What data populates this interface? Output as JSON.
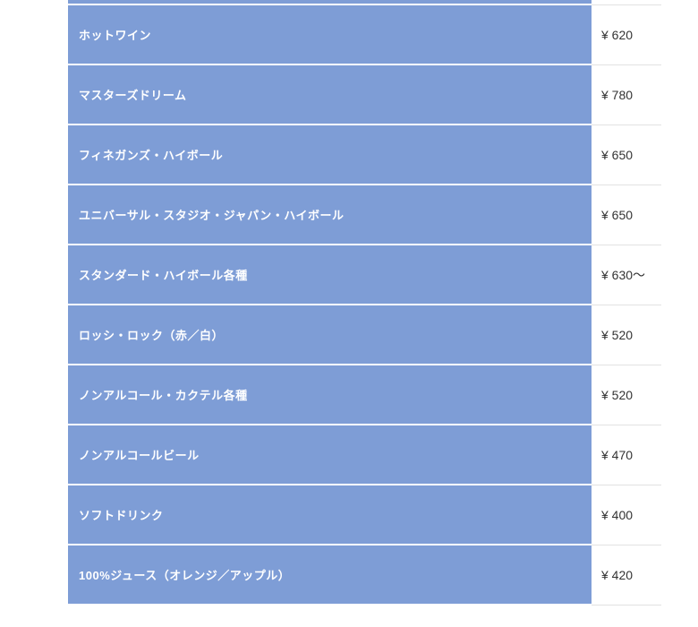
{
  "menu": {
    "rows": [
      {
        "item": "ホットワイン",
        "price": "¥ 620"
      },
      {
        "item": "マスターズドリーム",
        "price": "¥ 780"
      },
      {
        "item": "フィネガンズ・ハイボール",
        "price": "¥ 650"
      },
      {
        "item": "ユニバーサル・スタジオ・ジャパン・ハイボール",
        "price": "¥ 650"
      },
      {
        "item": "スタンダード・ハイボール各種",
        "price": "¥ 630〜"
      },
      {
        "item": "ロッシ・ロック（赤／白）",
        "price": "¥ 520"
      },
      {
        "item": "ノンアルコール・カクテル各種",
        "price": "¥ 520"
      },
      {
        "item": "ノンアルコールビール",
        "price": "¥ 470"
      },
      {
        "item": "ソフトドリンク",
        "price": "¥ 400"
      },
      {
        "item": "100%ジュース（オレンジ／アップル）",
        "price": "¥ 420"
      }
    ]
  },
  "colors": {
    "row_bg": "#7E9DD6",
    "row_text": "#FFFFFF",
    "price_text": "#333333",
    "divider": "#E2E2E2",
    "page_bg": "#FFFFFF"
  }
}
